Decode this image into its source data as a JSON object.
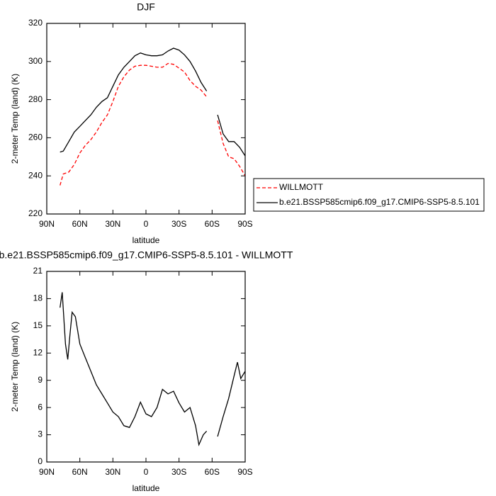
{
  "chart_data": [
    {
      "type": "line",
      "title": "DJF",
      "xlabel": "latitude",
      "ylabel": "2-meter Temp (land) (K)",
      "x": [
        78,
        75,
        70,
        65,
        60,
        55,
        50,
        45,
        40,
        35,
        30,
        25,
        20,
        15,
        10,
        5,
        0,
        -5,
        -10,
        -15,
        -20,
        -25,
        -30,
        -35,
        -40,
        -45,
        -50,
        -55,
        -60,
        -65,
        -70,
        -75,
        -80,
        -85,
        -90
      ],
      "series": [
        {
          "name": "WILLMOTT",
          "color": "#ff0000",
          "dashed": true,
          "values": [
            235,
            241,
            242,
            246,
            252,
            256,
            259,
            263,
            268,
            272,
            279,
            287,
            292,
            295.5,
            297.5,
            298,
            298,
            297.5,
            297,
            297,
            299,
            298.5,
            296.5,
            294.5,
            290,
            287,
            285,
            281.5,
            null,
            269,
            257,
            250,
            249,
            245,
            240
          ]
        },
        {
          "name": "b.e21.BSSP585cmip6.f09_g17.CMIP6-SSP5-8.5.101",
          "color": "#000000",
          "dashed": false,
          "values": [
            252.5,
            253,
            258,
            263,
            266,
            269,
            272,
            276,
            279,
            281,
            287,
            293,
            297,
            300,
            303,
            304.5,
            303.5,
            303,
            303,
            303.5,
            305.5,
            307,
            306,
            303.5,
            300,
            295,
            289,
            284.5,
            null,
            272,
            262,
            258,
            258,
            255,
            250.5
          ]
        }
      ],
      "xlim": [
        90,
        -90
      ],
      "xticks": [
        {
          "value": 90,
          "label": "90N"
        },
        {
          "value": 60,
          "label": "60N"
        },
        {
          "value": 30,
          "label": "30N"
        },
        0,
        {
          "value": -30,
          "label": "30S"
        },
        {
          "value": -60,
          "label": "60S"
        },
        {
          "value": -90,
          "label": "90S"
        }
      ],
      "ylim": [
        220,
        320
      ],
      "yticks": [
        220,
        240,
        260,
        280,
        300,
        320
      ],
      "legend": "right"
    },
    {
      "type": "line",
      "title": "b.e21.BSSP585cmip6.f09_g17.CMIP6-SSP5-8.5.101 - WILLMOTT",
      "xlabel": "latitude",
      "ylabel": "2-meter Temp (land) (K)",
      "x": [
        78,
        76,
        73,
        71,
        69,
        67,
        64,
        60,
        55,
        50,
        45,
        40,
        35,
        30,
        25,
        20,
        15,
        10,
        5,
        0,
        -5,
        -10,
        -15,
        -20,
        -25,
        -30,
        -35,
        -40,
        -45,
        -48,
        -52,
        -55,
        -60,
        -65,
        -70,
        -75,
        -80,
        -83,
        -86,
        -90
      ],
      "series": [
        {
          "color": "#000000",
          "values": [
            17,
            18.7,
            13,
            11.3,
            14,
            16.5,
            16,
            13,
            11.5,
            10,
            8.5,
            7.5,
            6.5,
            5.5,
            5,
            4,
            3.8,
            5,
            6.6,
            5.3,
            5,
            6,
            8,
            7.5,
            7.8,
            6.5,
            5.5,
            6,
            4,
            1.9,
            3,
            3.4,
            null,
            2.8,
            5,
            7,
            9.5,
            11,
            9.2,
            10
          ]
        }
      ],
      "xlim": [
        90,
        -90
      ],
      "xticks": [
        {
          "value": 90,
          "label": "90N"
        },
        {
          "value": 60,
          "label": "60N"
        },
        {
          "value": 30,
          "label": "30N"
        },
        0,
        {
          "value": -30,
          "label": "30S"
        },
        {
          "value": -60,
          "label": "60S"
        },
        {
          "value": -90,
          "label": "90S"
        }
      ],
      "ylim": [
        0,
        21
      ],
      "yticks": [
        0,
        3,
        6,
        9,
        12,
        15,
        18,
        21
      ]
    }
  ]
}
